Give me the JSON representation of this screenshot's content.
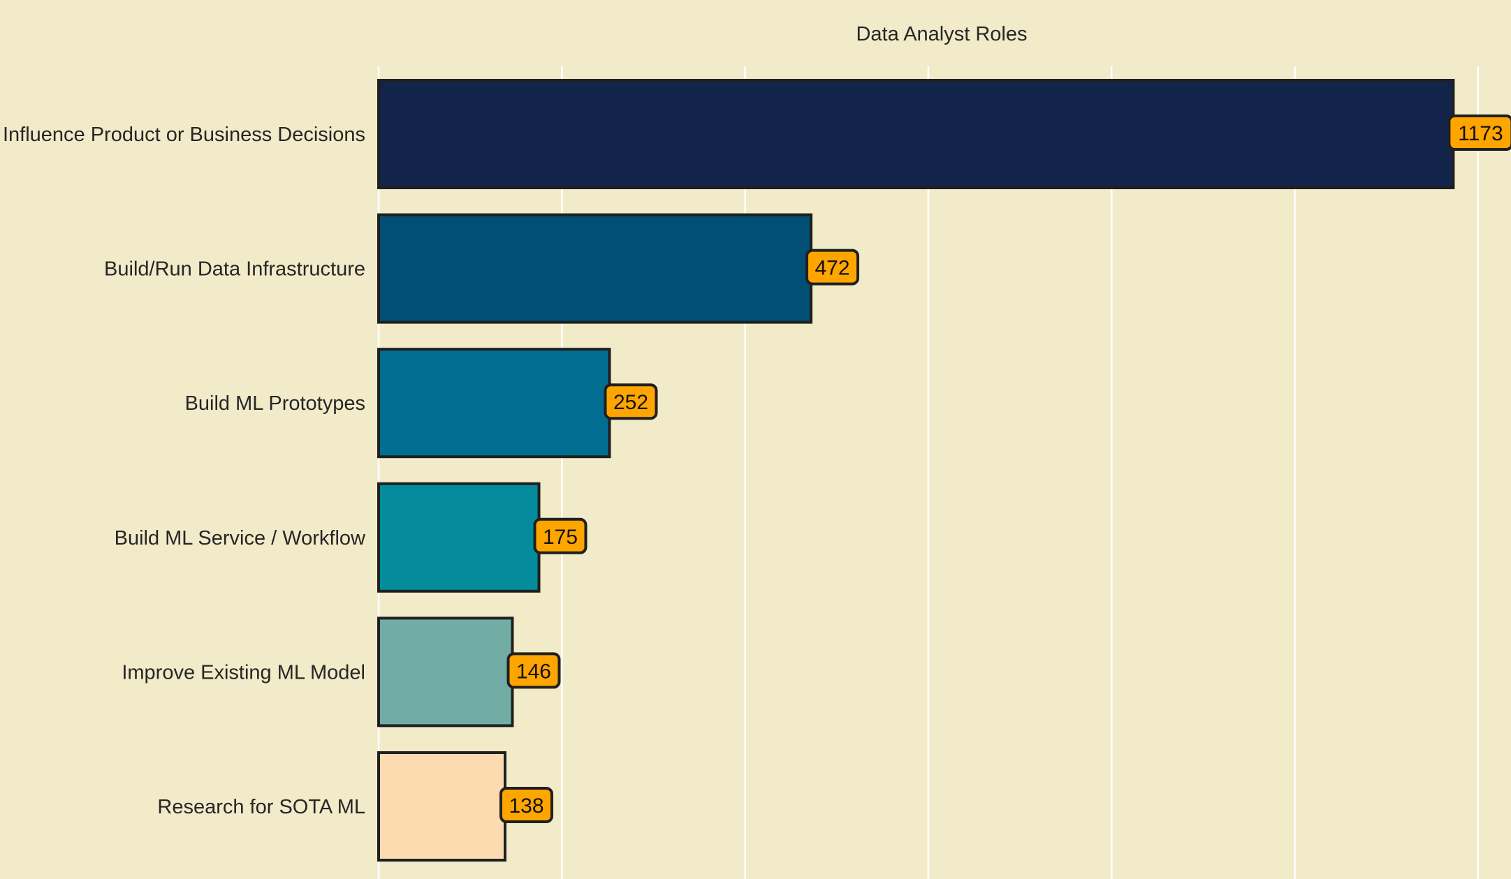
{
  "chart_data": {
    "type": "bar",
    "orientation": "horizontal",
    "title": "Data Analyst Roles",
    "xlabel": "",
    "ylabel": "",
    "categories": [
      "Influence Product or Business Decisions",
      "Build/Run Data Infrastructure",
      "Build ML Prototypes",
      "Build ML Service / Workflow",
      "Improve Existing ML Model",
      "Research for SOTA ML"
    ],
    "values": [
      1173,
      472,
      252,
      175,
      146,
      138
    ],
    "bar_colors": [
      "#13244b",
      "#024f75",
      "#016e91",
      "#048c9c",
      "#71ada5",
      "#fcdbb1"
    ],
    "xlim": [
      0,
      1240
    ],
    "x_gridlines": [
      0,
      200,
      400,
      600,
      800,
      1000,
      1200
    ],
    "x_tick_labels_visible": false,
    "grid": true,
    "legend": "none",
    "data_labels": true
  },
  "colors": {
    "background": "#f2ebc9",
    "gridline": "#ffffff",
    "bar_edge": "#1f1f1f",
    "label_box": "#ffa500",
    "text": "#262626"
  }
}
